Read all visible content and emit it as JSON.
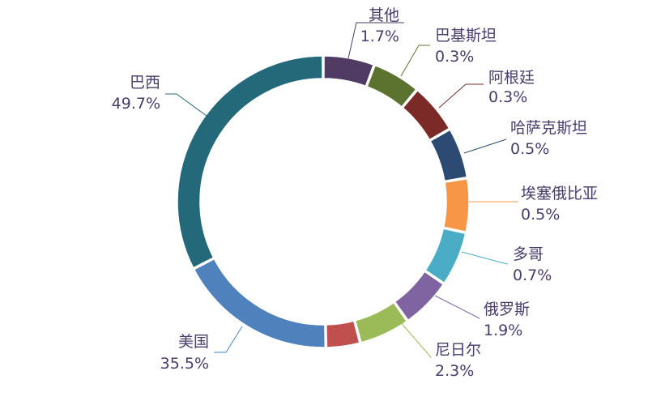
{
  "chart_data": {
    "type": "pie",
    "variant": "donut",
    "title": "",
    "legend": "none",
    "slices": [
      {
        "label": "其他",
        "value": 1.7,
        "pct_text": "1.7%",
        "color": "#4f3b63"
      },
      {
        "label": "巴基斯坦",
        "value": 0.3,
        "pct_text": "0.3%",
        "color": "#5c7330"
      },
      {
        "label": "阿根廷",
        "value": 0.3,
        "pct_text": "0.3%",
        "color": "#7b2a27"
      },
      {
        "label": "哈萨克斯坦",
        "value": 0.5,
        "pct_text": "0.5%",
        "color": "#2c4a72"
      },
      {
        "label": "埃塞俄比亚",
        "value": 0.5,
        "pct_text": "0.5%",
        "color": "#f79646"
      },
      {
        "label": "多哥",
        "value": 0.7,
        "pct_text": "0.7%",
        "color": "#4bacc6"
      },
      {
        "label": "俄罗斯",
        "value": 1.9,
        "pct_text": "1.9%",
        "color": "#8064a2"
      },
      {
        "label": "尼日尔",
        "value": 2.3,
        "pct_text": "2.3%",
        "color": "#9bbb59"
      },
      {
        "label": "",
        "value": 1.5,
        "pct_text": "",
        "color": "#c0504d"
      },
      {
        "label": "美国",
        "value": 35.5,
        "pct_text": "35.5%",
        "color": "#4f81bd"
      },
      {
        "label": "巴西",
        "value": 49.7,
        "pct_text": "49.7%",
        "color": "#24697a"
      }
    ]
  }
}
